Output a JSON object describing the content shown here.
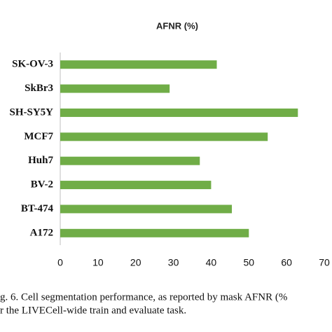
{
  "chart_data": {
    "type": "bar",
    "orientation": "horizontal",
    "title": "AFNR (%)",
    "categories": [
      "SK-OV-3",
      "SkBr3",
      "SH-SY5Y",
      "MCF7",
      "Huh7",
      "BV-2",
      "BT-474",
      "A172"
    ],
    "values": [
      41.5,
      29,
      63,
      55,
      37,
      40,
      45.5,
      50
    ],
    "color": "#70ad47",
    "xlim": [
      0,
      70
    ],
    "xticks": [
      0,
      10,
      20,
      30,
      40,
      50,
      60,
      70
    ],
    "grid": false,
    "caption": [
      "g.  6. Cell segmentation performance, as reported by mask AFNR (%",
      "r the LIVECell-wide train and evaluate task."
    ]
  }
}
